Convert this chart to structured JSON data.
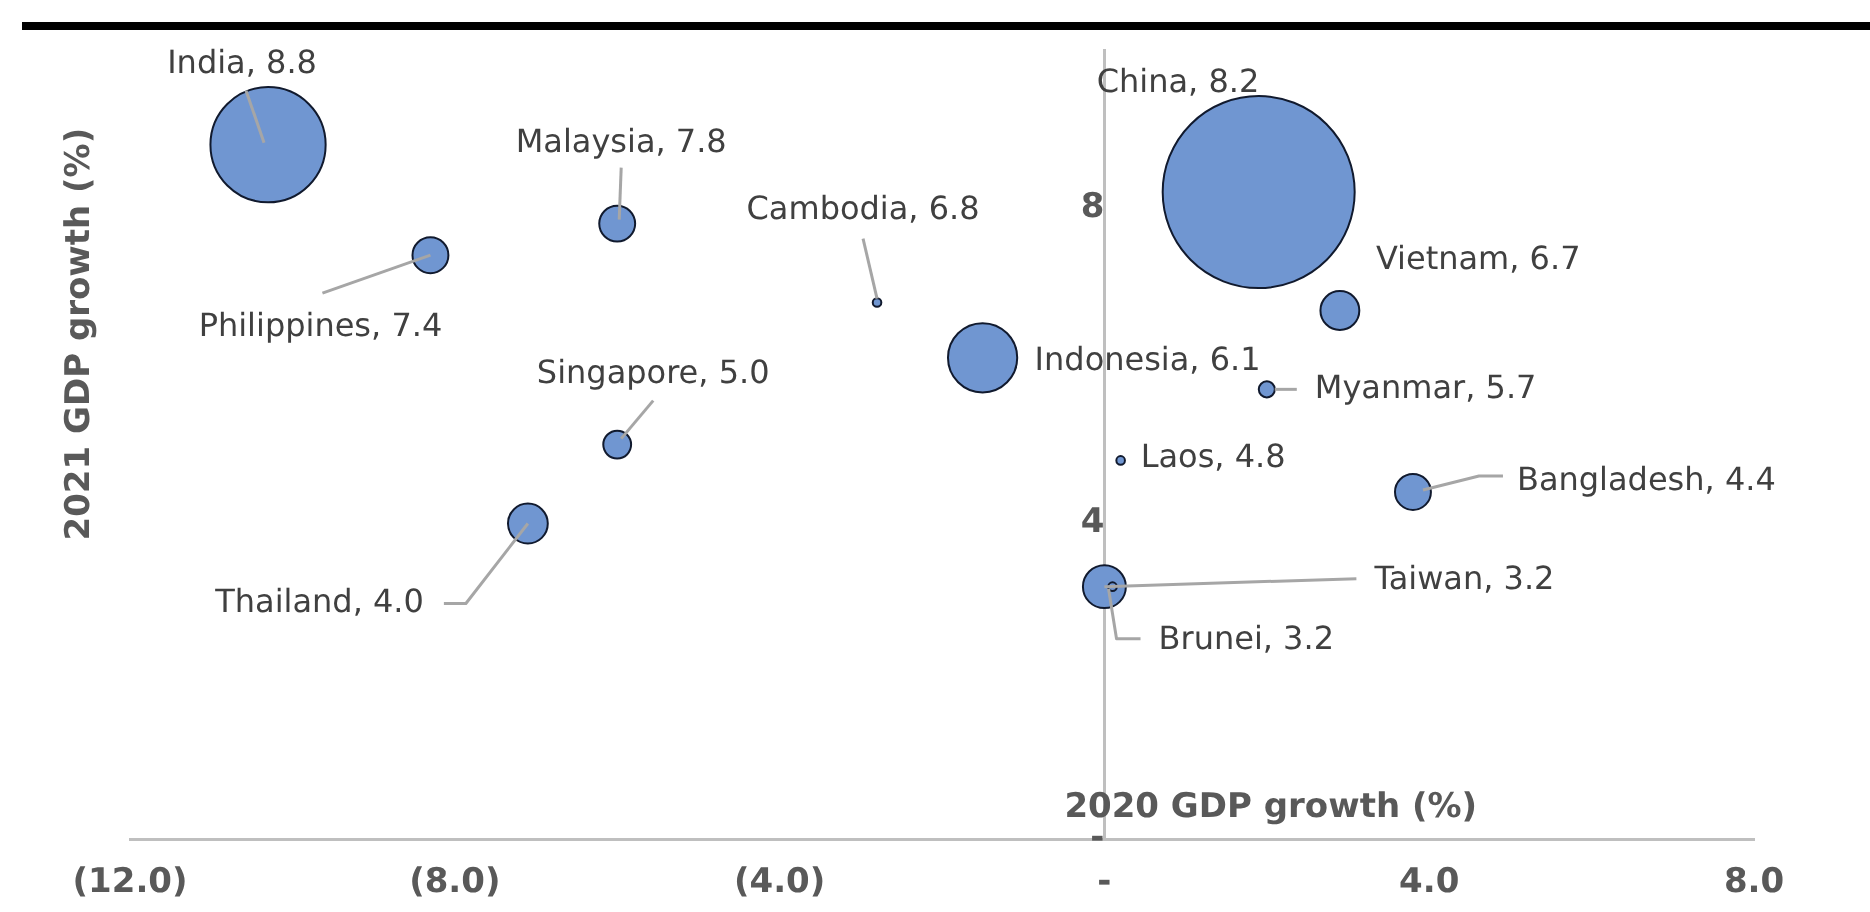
{
  "chart_data": {
    "type": "bubble",
    "xlabel": "2020 GDP growth (%)",
    "ylabel": "2021 GDP growth (%)",
    "x": [
      -10.3,
      -6.0,
      -8.3,
      -2.8,
      -6.0,
      -7.1,
      -1.5,
      1.9,
      2.9,
      2.0,
      0.2,
      3.8,
      0.0,
      0.1
    ],
    "series": [
      {
        "color": "#7096d1",
        "values": [
          8.8,
          7.8,
          7.4,
          6.8,
          5.0,
          4.0,
          6.1,
          8.2,
          6.7,
          5.7,
          4.8,
          4.4,
          3.2,
          3.2
        ],
        "sizes": [
          0.36,
          0.035,
          0.035,
          0.002,
          0.021,
          0.043,
          0.13,
          1,
          0.041,
          0.007,
          0.002,
          0.035,
          0.05,
          0.002
        ],
        "value_labels": [
          "India, 8.8",
          "Malaysia, 7.8",
          "Philippines, 7.4",
          "Cambodia, 6.8",
          "Singapore, 5.0",
          "Thailand, 4.0",
          "Indonesia, 6.1",
          "China, 8.2",
          "Vietnam, 6.7",
          "Myanmar, 5.7",
          "Laos, 4.8",
          "Bangladesh, 4.4",
          "Taiwan, 3.2",
          "Brunei, 3.2"
        ]
      }
    ],
    "xlim": [
      -12,
      8
    ],
    "xticks": [
      {
        "value": -12,
        "label": "(12.0)"
      },
      {
        "value": -8,
        "label": "(8.0)"
      },
      {
        "value": -4,
        "label": "(4.0)"
      },
      {
        "value": 0,
        "label": "-"
      },
      {
        "value": 4,
        "label": "4.0"
      },
      {
        "value": 8,
        "label": "8.0"
      }
    ],
    "ylim": [
      0,
      10
    ],
    "yticks": [
      {
        "value": 0,
        "label": "-"
      },
      4,
      8
    ],
    "marker": "circle"
  }
}
